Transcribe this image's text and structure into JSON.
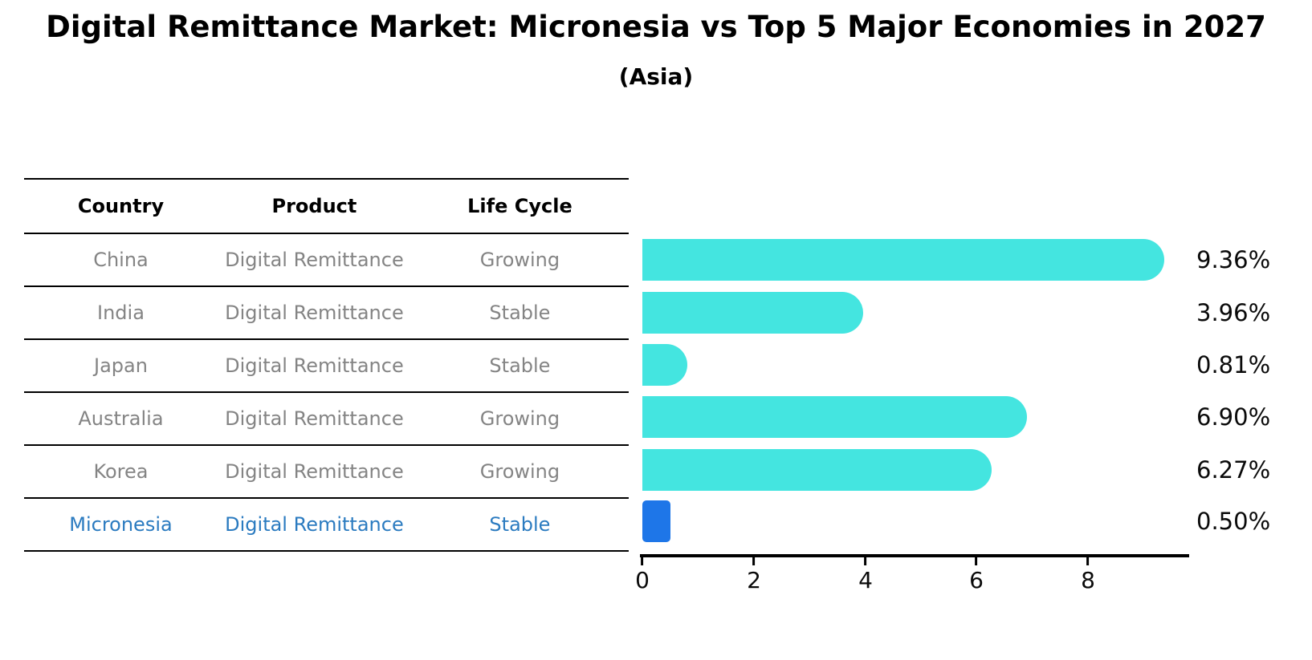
{
  "header": {
    "title": "Digital Remittance Market: Micronesia vs Top 5 Major Economies in 2027",
    "subtitle": "(Asia)"
  },
  "table": {
    "columns": [
      "Country",
      "Product",
      "Life Cycle"
    ],
    "rows": [
      {
        "country": "China",
        "product": "Digital Remittance",
        "life_cycle": "Growing",
        "highlight": false
      },
      {
        "country": "India",
        "product": "Digital Remittance",
        "life_cycle": "Stable",
        "highlight": false
      },
      {
        "country": "Japan",
        "product": "Digital Remittance",
        "life_cycle": "Stable",
        "highlight": false
      },
      {
        "country": "Australia",
        "product": "Digital Remittance",
        "life_cycle": "Growing",
        "highlight": false
      },
      {
        "country": "Korea",
        "product": "Digital Remittance",
        "life_cycle": "Growing",
        "highlight": false
      },
      {
        "country": "Micronesia",
        "product": "Digital Remittance",
        "life_cycle": "Stable",
        "highlight": true
      }
    ]
  },
  "chart_data": {
    "type": "bar",
    "orientation": "horizontal",
    "title": "Digital Remittance Market: Micronesia vs Top 5 Major Economies in 2027",
    "subtitle": "(Asia)",
    "categories": [
      "China",
      "India",
      "Japan",
      "Australia",
      "Korea",
      "Micronesia"
    ],
    "values": [
      9.36,
      3.96,
      0.81,
      6.9,
      6.27,
      0.5
    ],
    "display_values": [
      "9.36%",
      "3.96%",
      "0.81%",
      "6.90%",
      "6.27%",
      "0.50%"
    ],
    "x_ticks": [
      0,
      2,
      4,
      6,
      8
    ],
    "xlim": [
      0,
      9.8
    ],
    "grid": false,
    "legend": "none",
    "default_color": "#44E5E0",
    "highlight_color": "#1E76E8",
    "highlight_index": 5,
    "bar_colors": [
      "#44E5E0",
      "#44E5E0",
      "#44E5E0",
      "#44E5E0",
      "#44E5E0",
      "#1E76E8"
    ]
  },
  "colors": {
    "row_text": "#848484",
    "highlight_text": "#2B7BC0",
    "header_text": "#000000",
    "axis": "#000000",
    "background": "#ffffff"
  }
}
